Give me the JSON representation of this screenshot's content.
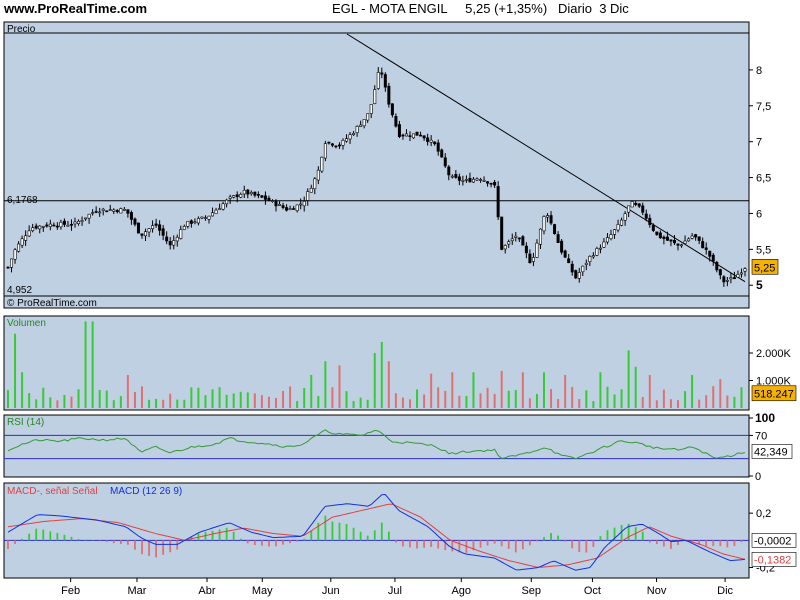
{
  "header": {
    "site": "www.ProRealTime.com",
    "info": "EGL - MOTA ENGIL     5,25 (+1,35%)   Diario  3 Dic"
  },
  "colors": {
    "panel_bg": "#c0d0e3",
    "up": "#33cc33",
    "down": "#e07070",
    "rsi_line": "#339933",
    "macd_line": "#1030e0",
    "signal_line": "#e04040",
    "hline": "#2b2bd0",
    "price_badge": "#f5b000"
  },
  "chart_data": [
    {
      "type": "candlestick",
      "panel": "price",
      "title": "Precio",
      "watermark": "© ProRealTime.com",
      "ylim": [
        4.85,
        8.5
      ],
      "yticks": [
        5,
        5.5,
        6,
        6.5,
        7,
        7.5,
        8
      ],
      "ytick_labels": [
        "5",
        "5,5",
        "6",
        "6,5",
        "7",
        "7,5",
        "8"
      ],
      "x_labels": [
        "Feb",
        "Mar",
        "Abr",
        "May",
        "Jun",
        "Jul",
        "Ago",
        "Sep",
        "Oct",
        "Nov",
        "Dic"
      ],
      "hline_value": 6.1768,
      "hline_label": "6,1768",
      "low_label": "4,952",
      "last_value": 5.25,
      "last_label": "5,25",
      "trendline": {
        "from": [
          0.46,
          8.5
        ],
        "to": [
          1.0,
          5.05
        ]
      },
      "close_anchors": [
        [
          0.0,
          5.25
        ],
        [
          0.01,
          5.5
        ],
        [
          0.03,
          5.8
        ],
        [
          0.06,
          5.85
        ],
        [
          0.09,
          5.85
        ],
        [
          0.12,
          6.05
        ],
        [
          0.16,
          6.05
        ],
        [
          0.18,
          5.7
        ],
        [
          0.2,
          5.85
        ],
        [
          0.22,
          5.55
        ],
        [
          0.24,
          5.85
        ],
        [
          0.27,
          5.95
        ],
        [
          0.3,
          6.2
        ],
        [
          0.32,
          6.3
        ],
        [
          0.35,
          6.2
        ],
        [
          0.38,
          6.05
        ],
        [
          0.4,
          6.15
        ],
        [
          0.42,
          6.55
        ],
        [
          0.43,
          7.0
        ],
        [
          0.45,
          6.95
        ],
        [
          0.47,
          7.15
        ],
        [
          0.49,
          7.4
        ],
        [
          0.505,
          8.05
        ],
        [
          0.515,
          7.6
        ],
        [
          0.53,
          7.1
        ],
        [
          0.56,
          7.1
        ],
        [
          0.58,
          6.95
        ],
        [
          0.6,
          6.5
        ],
        [
          0.62,
          6.45
        ],
        [
          0.64,
          6.5
        ],
        [
          0.66,
          6.4
        ],
        [
          0.67,
          5.5
        ],
        [
          0.69,
          5.7
        ],
        [
          0.71,
          5.3
        ],
        [
          0.73,
          6.05
        ],
        [
          0.75,
          5.5
        ],
        [
          0.77,
          5.1
        ],
        [
          0.79,
          5.4
        ],
        [
          0.81,
          5.6
        ],
        [
          0.83,
          5.85
        ],
        [
          0.845,
          6.15
        ],
        [
          0.86,
          6.05
        ],
        [
          0.88,
          5.7
        ],
        [
          0.91,
          5.55
        ],
        [
          0.93,
          5.7
        ],
        [
          0.95,
          5.45
        ],
        [
          0.97,
          5.05
        ],
        [
          0.985,
          5.1
        ],
        [
          1.0,
          5.25
        ]
      ]
    },
    {
      "type": "bar",
      "panel": "volume",
      "title": "Volumen",
      "ylim": [
        0,
        3200
      ],
      "yticks": [
        1000,
        2000
      ],
      "ytick_labels": [
        "1.000K",
        "2.000K"
      ],
      "last_value": 518.247,
      "last_label": "518.247",
      "spikes": [
        [
          0.012,
          2700
        ],
        [
          0.022,
          1300
        ],
        [
          0.11,
          3150
        ],
        [
          0.165,
          1200
        ],
        [
          0.41,
          1200
        ],
        [
          0.43,
          1700
        ],
        [
          0.45,
          1550
        ],
        [
          0.5,
          2000
        ],
        [
          0.51,
          2400
        ],
        [
          0.52,
          1700
        ],
        [
          0.57,
          1250
        ],
        [
          0.6,
          1300
        ],
        [
          0.63,
          1300
        ],
        [
          0.67,
          1350
        ],
        [
          0.7,
          1300
        ],
        [
          0.73,
          1300
        ],
        [
          0.76,
          1200
        ],
        [
          0.8,
          1300
        ],
        [
          0.84,
          2100
        ],
        [
          0.85,
          1500
        ],
        [
          0.87,
          1200
        ],
        [
          0.93,
          1200
        ],
        [
          0.97,
          1050
        ]
      ]
    },
    {
      "type": "line",
      "panel": "rsi",
      "title": "RSI (14)",
      "ylim": [
        0,
        100
      ],
      "yticks": [
        0,
        70,
        100
      ],
      "ytick_labels": [
        "0",
        "70",
        "100"
      ],
      "hlines": [
        70,
        30
      ],
      "last_value": 42.349,
      "last_label": "42,349",
      "anchors": [
        [
          0.0,
          45
        ],
        [
          0.02,
          55
        ],
        [
          0.04,
          62
        ],
        [
          0.07,
          60
        ],
        [
          0.1,
          65
        ],
        [
          0.13,
          62
        ],
        [
          0.16,
          65
        ],
        [
          0.18,
          40
        ],
        [
          0.2,
          50
        ],
        [
          0.22,
          40
        ],
        [
          0.25,
          50
        ],
        [
          0.28,
          55
        ],
        [
          0.3,
          65
        ],
        [
          0.32,
          60
        ],
        [
          0.35,
          56
        ],
        [
          0.38,
          50
        ],
        [
          0.4,
          55
        ],
        [
          0.43,
          78
        ],
        [
          0.45,
          72
        ],
        [
          0.48,
          70
        ],
        [
          0.5,
          80
        ],
        [
          0.52,
          60
        ],
        [
          0.56,
          55
        ],
        [
          0.58,
          52
        ],
        [
          0.6,
          38
        ],
        [
          0.62,
          42
        ],
        [
          0.66,
          45
        ],
        [
          0.67,
          30
        ],
        [
          0.7,
          38
        ],
        [
          0.73,
          50
        ],
        [
          0.75,
          35
        ],
        [
          0.77,
          30
        ],
        [
          0.8,
          45
        ],
        [
          0.83,
          60
        ],
        [
          0.85,
          58
        ],
        [
          0.88,
          48
        ],
        [
          0.91,
          45
        ],
        [
          0.93,
          50
        ],
        [
          0.96,
          30
        ],
        [
          0.98,
          35
        ],
        [
          1.0,
          42
        ]
      ]
    },
    {
      "type": "line",
      "panel": "macd",
      "title": "MACD-, señal Señal  MACD (12 26 9)",
      "legend": [
        {
          "text": "MACD-, señal Señal",
          "color": "#e04040"
        },
        {
          "text": "MACD (12 26 9)",
          "color": "#1030e0"
        }
      ],
      "ylim": [
        -0.27,
        0.4
      ],
      "yticks": [
        0.2,
        -0.2
      ],
      "ytick_labels": [
        "0,2",
        "-0,2"
      ],
      "zero_label": "-0,0002",
      "last_label": "-0,1382",
      "macd": [
        [
          0.0,
          0.06
        ],
        [
          0.04,
          0.19
        ],
        [
          0.07,
          0.18
        ],
        [
          0.12,
          0.15
        ],
        [
          0.16,
          0.1
        ],
        [
          0.18,
          0.02
        ],
        [
          0.2,
          -0.03
        ],
        [
          0.23,
          -0.03
        ],
        [
          0.26,
          0.06
        ],
        [
          0.3,
          0.13
        ],
        [
          0.33,
          0.06
        ],
        [
          0.36,
          0.02
        ],
        [
          0.4,
          0.03
        ],
        [
          0.43,
          0.25
        ],
        [
          0.46,
          0.27
        ],
        [
          0.49,
          0.25
        ],
        [
          0.51,
          0.35
        ],
        [
          0.53,
          0.22
        ],
        [
          0.57,
          0.1
        ],
        [
          0.6,
          -0.05
        ],
        [
          0.62,
          -0.1
        ],
        [
          0.66,
          -0.13
        ],
        [
          0.69,
          -0.22
        ],
        [
          0.72,
          -0.2
        ],
        [
          0.74,
          -0.15
        ],
        [
          0.77,
          -0.22
        ],
        [
          0.79,
          -0.2
        ],
        [
          0.81,
          -0.05
        ],
        [
          0.84,
          0.1
        ],
        [
          0.86,
          0.12
        ],
        [
          0.88,
          0.06
        ],
        [
          0.9,
          -0.01
        ],
        [
          0.92,
          0.0
        ],
        [
          0.95,
          -0.08
        ],
        [
          0.98,
          -0.15
        ],
        [
          1.0,
          -0.14
        ]
      ],
      "signal": [
        [
          0.0,
          0.1
        ],
        [
          0.05,
          0.14
        ],
        [
          0.1,
          0.16
        ],
        [
          0.15,
          0.13
        ],
        [
          0.2,
          0.05
        ],
        [
          0.24,
          0.0
        ],
        [
          0.28,
          0.05
        ],
        [
          0.32,
          0.09
        ],
        [
          0.36,
          0.05
        ],
        [
          0.4,
          0.03
        ],
        [
          0.44,
          0.17
        ],
        [
          0.48,
          0.22
        ],
        [
          0.52,
          0.27
        ],
        [
          0.56,
          0.17
        ],
        [
          0.6,
          0.0
        ],
        [
          0.64,
          -0.08
        ],
        [
          0.68,
          -0.15
        ],
        [
          0.72,
          -0.2
        ],
        [
          0.76,
          -0.18
        ],
        [
          0.8,
          -0.13
        ],
        [
          0.84,
          0.02
        ],
        [
          0.87,
          0.1
        ],
        [
          0.9,
          0.03
        ],
        [
          0.94,
          -0.03
        ],
        [
          0.97,
          -0.1
        ],
        [
          1.0,
          -0.14
        ]
      ]
    }
  ]
}
